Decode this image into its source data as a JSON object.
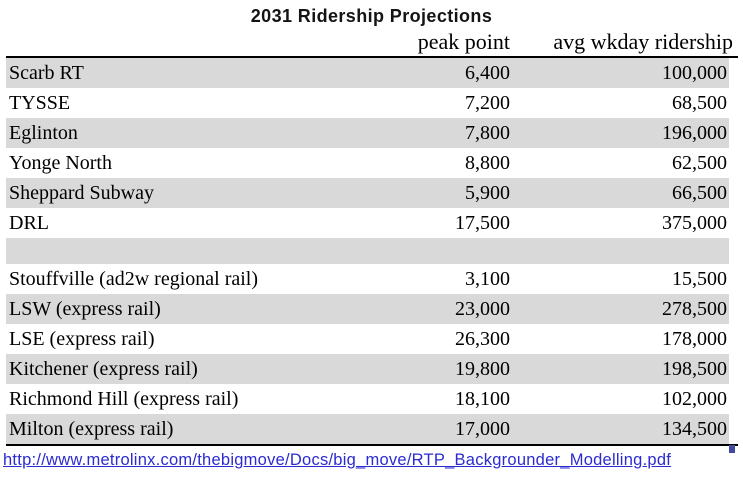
{
  "title": "2031 Ridership Projections",
  "table": {
    "columns": [
      "peak point",
      "avg wkday ridership"
    ],
    "rows": [
      {
        "name": "Scarb RT",
        "peak": "6,400",
        "ridership": "100,000"
      },
      {
        "name": "TYSSE",
        "peak": "7,200",
        "ridership": "68,500"
      },
      {
        "name": "Eglinton",
        "peak": "7,800",
        "ridership": "196,000"
      },
      {
        "name": "Yonge North",
        "peak": "8,800",
        "ridership": "62,500"
      },
      {
        "name": "Sheppard Subway",
        "peak": "5,900",
        "ridership": "66,500"
      },
      {
        "name": "DRL",
        "peak": "17,500",
        "ridership": "375,000"
      },
      {
        "name": "Stouffville (ad2w regional rail)",
        "peak": "3,100",
        "ridership": "15,500"
      },
      {
        "name": "LSW (express rail)",
        "peak": "23,000",
        "ridership": "278,500"
      },
      {
        "name": "LSE (express rail)",
        "peak": "26,300",
        "ridership": "178,000"
      },
      {
        "name": "Kitchener (express rail)",
        "peak": "19,800",
        "ridership": "198,500"
      },
      {
        "name": "Richmond Hill (express rail)",
        "peak": "18,100",
        "ridership": "102,000"
      },
      {
        "name": "Milton (express rail)",
        "peak": "17,000",
        "ridership": "134,500"
      }
    ]
  },
  "source_link": {
    "text": "http://www.metrolinx.com/thebigmove/Docs/big_move/RTP_Backgrounder_Modelling.pdf"
  },
  "colors": {
    "row_shade": "#d9d9d9",
    "rule": "#000000",
    "link_blue": "#2b2bd0",
    "corner_marker_blue": "#414a9e"
  },
  "chart_data": {
    "type": "table",
    "title": "2031 Ridership Projections",
    "columns": [
      "peak point",
      "avg wkday ridership"
    ],
    "categories": [
      "Scarb RT",
      "TYSSE",
      "Eglinton",
      "Yonge North",
      "Sheppard Subway",
      "DRL",
      "Stouffville (ad2w regional rail)",
      "LSW (express rail)",
      "LSE (express rail)",
      "Kitchener (express rail)",
      "Richmond Hill (express rail)",
      "Milton (express rail)"
    ],
    "series": [
      {
        "name": "peak point",
        "values": [
          6400,
          7200,
          7800,
          8800,
          5900,
          17500,
          3100,
          23000,
          26300,
          19800,
          18100,
          17000
        ]
      },
      {
        "name": "avg wkday ridership",
        "values": [
          100000,
          68500,
          196000,
          62500,
          66500,
          375000,
          15500,
          278500,
          178000,
          198500,
          102000,
          134500
        ]
      }
    ],
    "layout": {
      "row_groups": [
        6,
        6
      ],
      "spacer_row_after_index": 5,
      "striped": true,
      "first_row_shaded": true
    }
  }
}
